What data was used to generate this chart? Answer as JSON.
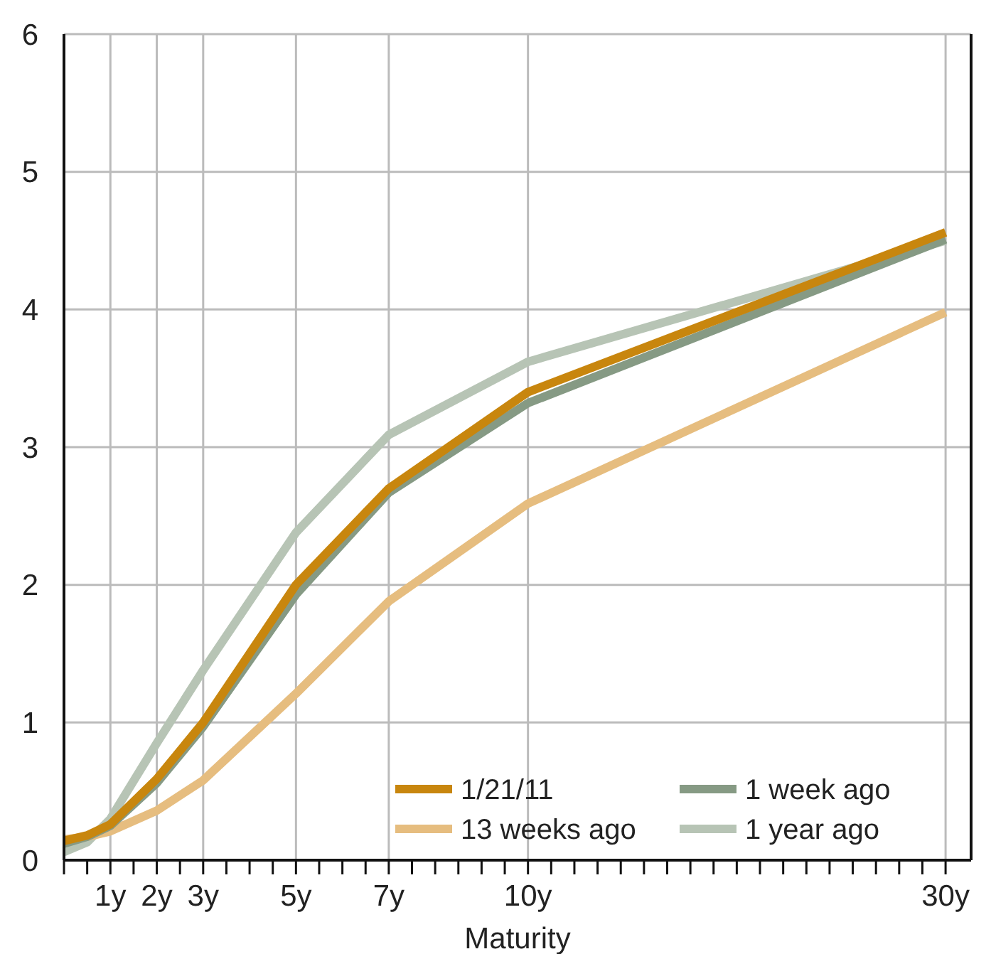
{
  "chart_data": {
    "type": "line",
    "xlabel": "Maturity",
    "categories": [
      null,
      null,
      "1y",
      null,
      "2y",
      null,
      "3y",
      null,
      null,
      null,
      "5y",
      null,
      null,
      null,
      "7y",
      null,
      null,
      null,
      null,
      null,
      "10y",
      null,
      null,
      null,
      null,
      null,
      null,
      null,
      null,
      null,
      null,
      null,
      null,
      null,
      null,
      null,
      null,
      null,
      "30y"
    ],
    "series": [
      {
        "name": "1/21/11",
        "color": "#c8860e",
        "values": [
          0.14,
          0.18,
          0.26,
          null,
          0.59,
          null,
          1.0,
          null,
          null,
          null,
          2.0,
          null,
          null,
          null,
          2.7,
          null,
          null,
          null,
          null,
          null,
          3.4,
          null,
          null,
          null,
          null,
          null,
          null,
          null,
          null,
          null,
          null,
          null,
          null,
          null,
          null,
          null,
          null,
          null,
          4.56
        ]
      },
      {
        "name": "1 week ago",
        "color": "#869a84",
        "values": [
          0.12,
          0.17,
          0.25,
          null,
          0.56,
          null,
          0.97,
          null,
          null,
          null,
          1.93,
          null,
          null,
          null,
          2.67,
          null,
          null,
          null,
          null,
          null,
          3.32,
          null,
          null,
          null,
          null,
          null,
          null,
          null,
          null,
          null,
          null,
          null,
          null,
          null,
          null,
          null,
          null,
          null,
          4.51
        ]
      },
      {
        "name": "13 weeks ago",
        "color": "#e6bd7f",
        "values": [
          0.15,
          0.17,
          0.21,
          null,
          0.36,
          null,
          0.58,
          null,
          null,
          null,
          1.21,
          null,
          null,
          null,
          1.88,
          null,
          null,
          null,
          null,
          null,
          2.59,
          null,
          null,
          null,
          null,
          null,
          null,
          null,
          null,
          null,
          null,
          null,
          null,
          null,
          null,
          null,
          null,
          null,
          3.98
        ]
      },
      {
        "name": "1 year ago",
        "color": "#b7c4b5",
        "values": [
          0.06,
          0.13,
          0.3,
          null,
          0.85,
          null,
          1.38,
          null,
          null,
          null,
          2.38,
          null,
          null,
          null,
          3.09,
          null,
          null,
          null,
          null,
          null,
          3.62,
          null,
          null,
          null,
          null,
          null,
          null,
          null,
          null,
          null,
          null,
          null,
          null,
          null,
          null,
          null,
          null,
          null,
          4.5
        ]
      }
    ],
    "ylim": [
      0,
      6
    ],
    "yticks": [
      0,
      1,
      2,
      3,
      4,
      5,
      6
    ],
    "grid": true,
    "legend": "bottom right",
    "marker": "none",
    "line_style": "solid"
  }
}
